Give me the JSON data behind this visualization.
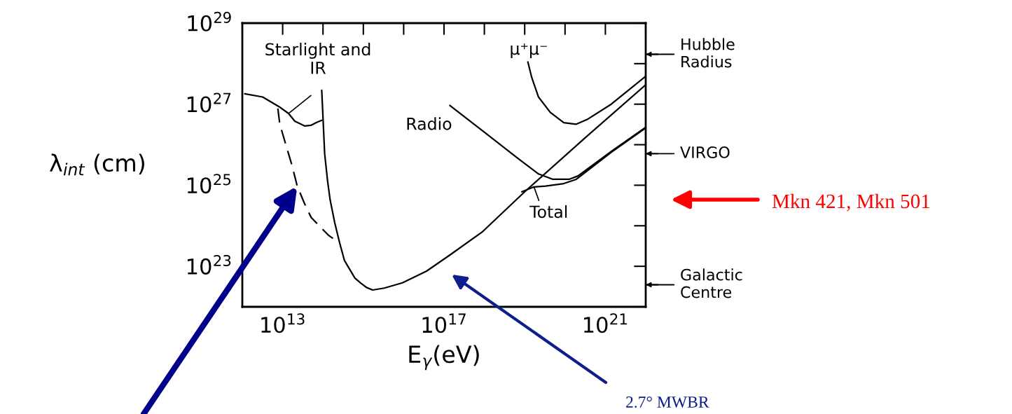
{
  "chart_data": {
    "type": "line",
    "xlabel": "E$_{γ}$(eV)",
    "ylabel": "λ$_{int}$ (cm)",
    "log": "xy",
    "xlim": [
      1000000000000.0,
      1e+22
    ],
    "ylim": [
      1e+22,
      1e+29
    ],
    "xticks": [
      {
        "value": 10000000000000.0,
        "label": "10$^{13}$"
      },
      {
        "value": 1e+17,
        "label": "10$^{17}$"
      },
      {
        "value": 1e+21,
        "label": "10$^{21}$"
      }
    ],
    "yticks": [
      {
        "value": 1e+23,
        "label": "10$^{23}$"
      },
      {
        "value": 1e+25,
        "label": "10$^{25}$"
      },
      {
        "value": 1e+27,
        "label": "10$^{27}$"
      },
      {
        "value": 1e+29,
        "label": "10$^{29}$"
      }
    ],
    "ref_lines": [
      {
        "axis": "y",
        "value": 3.5e+22,
        "label": "Galactic\nCentre"
      },
      {
        "axis": "y",
        "value": 6e+25,
        "label": "VIRGO"
      },
      {
        "axis": "y",
        "value": 1.7e+28,
        "label": "Hubble\nRadius"
      }
    ],
    "legend": false,
    "grid": false,
    "series": [
      {
        "name": "Starlight and\nIR",
        "color": "#000000",
        "line_style": "solid",
        "x": [
          1150000000000.0,
          3200000000000.0,
          8100000000000.0,
          14000000000000.0,
          20000000000000.0,
          35000000000000.0,
          50000000000000.0,
          68000000000000.0,
          93000000000000.0
        ],
        "values": [
          1.8e+27,
          1.5e+27,
          8.7e+26,
          5.9e+26,
          3.8e+26,
          2.9e+26,
          3e+26,
          3.5e+26,
          4e+26
        ]
      },
      {
        "color": "#000000",
        "line_style": "dashed",
        "x": [
          7600000000000.0,
          8500000000000.0,
          12000000000000.0,
          17000000000000.0,
          23000000000000.0,
          35000000000000.0,
          51000000000000.0,
          135000000000000.0,
          260000000000000.0
        ],
        "values": [
          7.8e+26,
          3.2e+26,
          1e+26,
          3.1e+25,
          9.5e+24,
          3.5e+24,
          1.6e+24,
          5.9e+23,
          3.7e+23
        ]
      },
      {
        "color": "#000000",
        "line_style": "solid",
        "x": [
          93000000000000.0,
          110000000000000.0,
          130000000000000.0,
          150000000000000.0,
          195000000000000.0,
          260000000000000.0,
          340000000000000.0,
          450000000000000.0,
          620000000000000.0,
          850000000000000.0,
          1200000000000000.0,
          1700000000000000.0,
          3300000000000000.0,
          9300000000000000.0,
          3.7e+16,
          1.4e+17,
          9.1e+17,
          1e+19,
          3.2e+20,
          1e+22
        ],
        "values": [
          2.2e+27,
          6e+25,
          1.26e+25,
          4.4e+24,
          1.2e+24,
          3.7e+23,
          1.4e+23,
          8.7e+22,
          5.1e+22,
          3.9e+22,
          3e+22,
          2.6e+22,
          2.9e+22,
          3.9e+22,
          7.6e+22,
          1.9e+23,
          7.2e+23,
          6.9e+24,
          1.5e+26,
          3e+27
        ]
      },
      {
        "name": "Radio",
        "color": "#000000",
        "line_style": "solid",
        "x": [
          1.4e+17,
          9.1e+17,
          6.8e+18,
          2.2e+19,
          5e+19,
          1.26e+20,
          2.1e+20,
          1.4e+21,
          1e+22
        ],
        "values": [
          9.3e+26,
          2.2e+26,
          4.6e+25,
          1.9e+25,
          1.4e+25,
          1.4e+25,
          1.7e+25,
          6.8e+25,
          2.7e+26
        ]
      },
      {
        "name": "Total",
        "color": "#000000",
        "line_style": "solid",
        "x": [
          8.5e+18,
          1.7e+19,
          3.3e+19,
          9.3e+19,
          1.9e+20,
          1.4e+21,
          1e+22
        ],
        "values": [
          6.9e+24,
          9.1e+24,
          9.5e+24,
          1.1e+25,
          1.4e+25,
          6.5e+25,
          2.6e+26
        ]
      },
      {
        "name": "μ⁺μ⁻",
        "color": "#000000",
        "line_style": "solid",
        "x": [
          1.2e+19,
          1.5e+19,
          2.2e+19,
          4.3e+19,
          9.3e+19,
          1.9e+20,
          3.7e+20,
          1.4e+21,
          1e+22
        ],
        "values": [
          1.1e+28,
          4.5e+27,
          1.5e+27,
          6.3e+26,
          3.5e+26,
          3.2e+26,
          4.3e+26,
          1e+27,
          4.9e+27
        ]
      }
    ],
    "annotations": [
      "2.7° MWBR",
      "Mkn 421, Mkn 501"
    ]
  }
}
